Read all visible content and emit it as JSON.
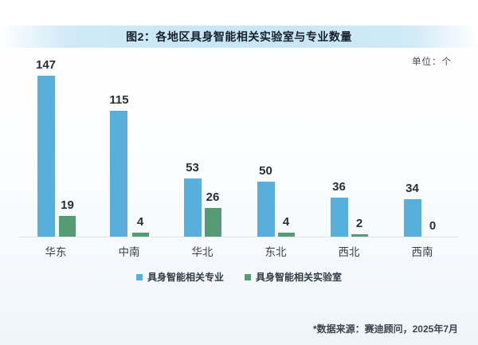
{
  "header": {
    "title": "图2：各地区具身智能相关实验室与专业数量",
    "unit_label": "单位：个"
  },
  "footer": {
    "source_note": "*数据来源：赛迪顾问，2025年7月"
  },
  "colors": {
    "banner": "#C9E6F6",
    "primary_series": "#58AFDC",
    "secondary_series": "#579B74",
    "axis_line": "#E1E6EA"
  },
  "chart_data": {
    "type": "bar",
    "title": "图2：各地区具身智能相关实验室与专业数量",
    "categories": [
      "华东",
      "中南",
      "华北",
      "东北",
      "西北",
      "西南"
    ],
    "series": [
      {
        "name": "具身智能相关专业",
        "color": "#58AFDC",
        "values": [
          147,
          115,
          53,
          50,
          36,
          34
        ]
      },
      {
        "name": "具身智能相关实验室",
        "color": "#579B74",
        "values": [
          19,
          4,
          26,
          4,
          2,
          0
        ]
      }
    ],
    "ylim": [
      0,
      147
    ],
    "value_labels": true,
    "grid": false,
    "legend_position": "bottom",
    "xlabel": "",
    "ylabel": ""
  }
}
